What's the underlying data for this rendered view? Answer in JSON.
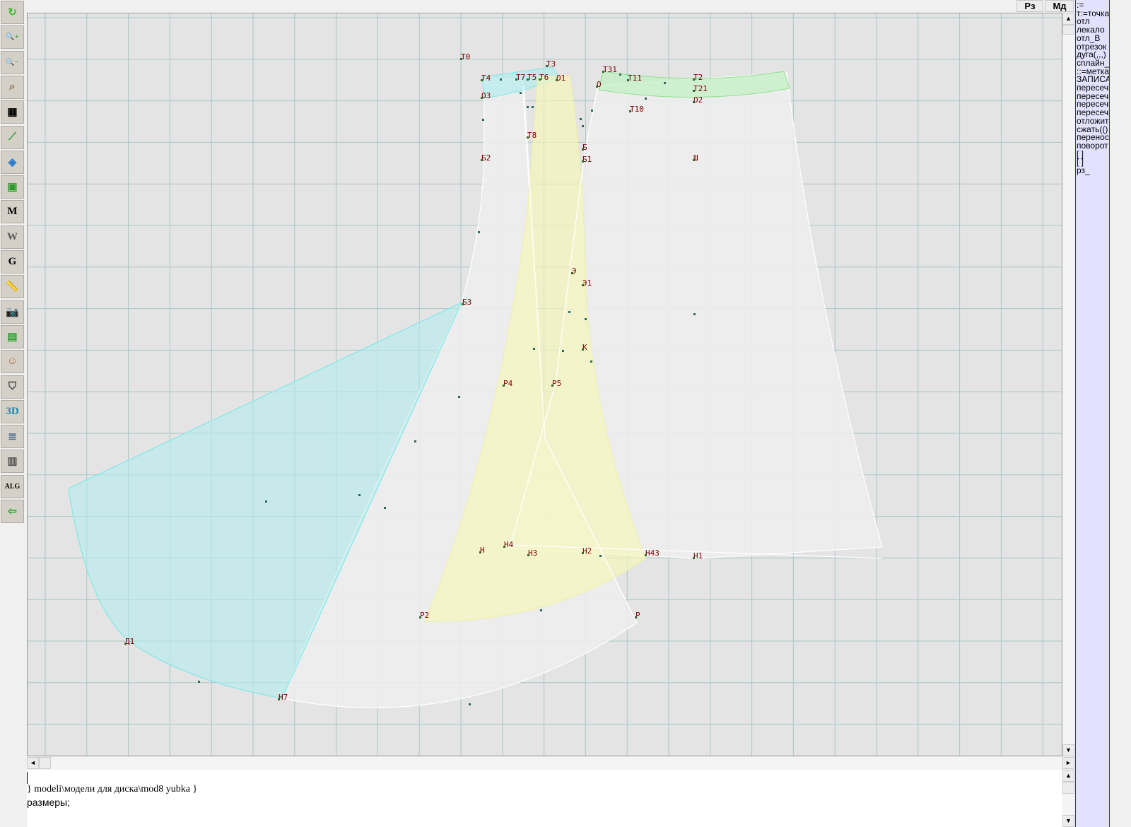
{
  "toolbar": {
    "tools": [
      {
        "name": "refresh-icon",
        "glyph": "↻",
        "color": "#3cbc2c"
      },
      {
        "name": "zoom-in-icon",
        "glyph": "🔍+",
        "color": "#2a9a2a"
      },
      {
        "name": "zoom-out-icon",
        "glyph": "🔍−",
        "color": "#2a9a2a"
      },
      {
        "name": "zoom-pattern-icon",
        "glyph": "⌕",
        "color": "#8a6a3a"
      },
      {
        "name": "grid-icon",
        "glyph": "▦",
        "color": "#000000"
      },
      {
        "name": "line-segment-icon",
        "glyph": "⟋",
        "color": "#2a9a2a"
      },
      {
        "name": "map-icon",
        "glyph": "◈",
        "color": "#2a7ad0"
      },
      {
        "name": "pattern-icon",
        "glyph": "▣",
        "color": "#2a9a2a"
      },
      {
        "name": "pattern-m-icon",
        "glyph": "M",
        "color": "#000000"
      },
      {
        "name": "compass-icon",
        "glyph": "W",
        "color": "#555555"
      },
      {
        "name": "pattern-g-icon",
        "glyph": "G",
        "color": "#000000"
      },
      {
        "name": "ruler-icon",
        "glyph": "📏",
        "color": "#2a7ad0"
      },
      {
        "name": "camera-icon",
        "glyph": "📷",
        "color": "#333333"
      },
      {
        "name": "spreadsheet-icon",
        "glyph": "▤",
        "color": "#2aa02a"
      },
      {
        "name": "face-photo-icon",
        "glyph": "☺",
        "color": "#b07040"
      },
      {
        "name": "jacket-icon",
        "glyph": "⛉",
        "color": "#444444"
      },
      {
        "name": "3d-icon",
        "glyph": "3D",
        "color": "#1a8ab0"
      },
      {
        "name": "text-list-icon",
        "glyph": "≣",
        "color": "#4a6a8a"
      },
      {
        "name": "books-icon",
        "glyph": "▥",
        "color": "#555555"
      },
      {
        "name": "alg-icon",
        "glyph": "ALG",
        "color": "#000000"
      },
      {
        "name": "exit-icon",
        "glyph": "⇦",
        "color": "#2aa02a"
      }
    ]
  },
  "topbar": {
    "rz_label": "Рз",
    "md_label": "Мд"
  },
  "right_panel": {
    "items": [
      ":=",
      "т:=точка",
      "отл",
      "лекало",
      "отл_В",
      "отрезок",
      "дуга(,,,)",
      "сплайн_",
      "::=метка",
      "ЗАПИСАТЬ",
      "пересечь",
      "пересечь",
      "пересечь",
      "пересечь",
      "отложить",
      "сжать(()",
      "перенос",
      "поворот",
      "[  ]",
      "[  ]",
      "рз_"
    ]
  },
  "canvas": {
    "colors": {
      "background": "#e4e4e4",
      "grid": "#a9c6c6",
      "piece_fill": "#efefef",
      "cyan": "#b4ecec",
      "green": "#c4f0c4",
      "yellow": "#f8f8b8",
      "label": "#7a0000"
    },
    "labels": [
      "Т0",
      "Т3",
      "Т4",
      "Т7",
      "Т5",
      "Т6",
      "О1",
      "О",
      "Т31",
      "Т11",
      "Т2",
      "Т21",
      "О2",
      "О3",
      "Т10",
      "Т8",
      "Б2",
      "Б",
      "Б1",
      "Ш",
      "Э",
      "Э1",
      "Б3",
      "К",
      "Р4",
      "Р5",
      "Н",
      "Н4",
      "Н3",
      "Н2",
      "Н43",
      "Н1",
      "Р2",
      "Р",
      "Д1",
      "Н7"
    ]
  },
  "console": {
    "line1": "} modeli\\модели для диска\\mod8 yubka }",
    "line2": "размеры;"
  }
}
